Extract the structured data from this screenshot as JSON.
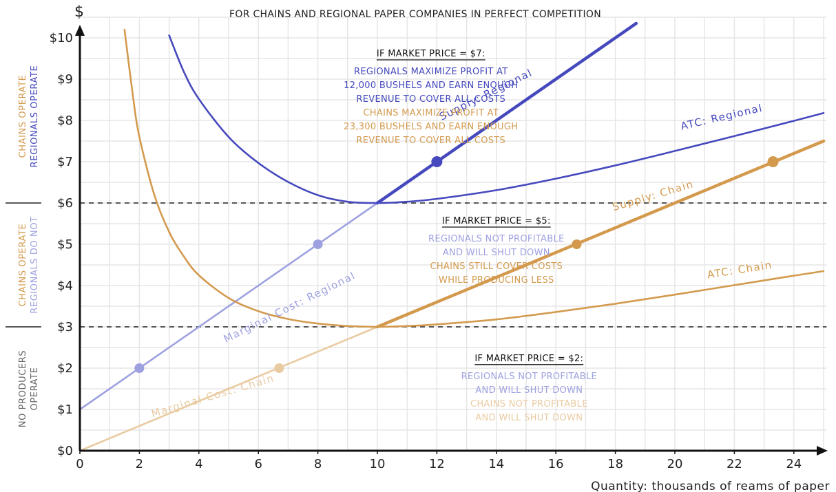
{
  "colors": {
    "regional": "#4549bd",
    "regional_light": "#9ea1e0",
    "chain": "#d39a4e",
    "chain_light": "#e9cba2",
    "grey": "#666666",
    "axis": "#111111"
  },
  "chart_data": {
    "type": "line",
    "title": "FOR CHAINS AND REGIONAL PAPER COMPANIES IN PERFECT COMPETITION",
    "xlabel": "Quantity: thousands of reams of paper",
    "ylabel": "$",
    "xlim": [
      0,
      25
    ],
    "ylim": [
      0,
      10
    ],
    "grid": true,
    "x_ticks": [
      "0",
      "2",
      "4",
      "6",
      "8",
      "10",
      "12",
      "14",
      "16",
      "18",
      "20",
      "22",
      "24"
    ],
    "y_ticks": [
      "$0",
      "$1",
      "$2",
      "$3",
      "$4",
      "$5",
      "$6",
      "$7",
      "$8",
      "$9",
      "$10"
    ],
    "price_lines": [
      3,
      6
    ],
    "series": [
      {
        "name": "Marginal Cost: Regional",
        "color_key": "regional_light",
        "x": [
          0,
          10
        ],
        "y": [
          1,
          6
        ]
      },
      {
        "name": "Supply: Regional",
        "color_key": "regional",
        "x": [
          10,
          18.7
        ],
        "y": [
          6,
          10.35
        ]
      },
      {
        "name": "ATC: Regional",
        "color_key": "regional",
        "x": [
          3,
          3.5,
          4,
          5,
          6,
          7,
          8,
          9,
          10,
          11,
          12,
          14,
          16,
          18,
          20,
          22,
          24,
          25
        ],
        "y": [
          10.06,
          9.17,
          8.52,
          7.6,
          6.97,
          6.51,
          6.19,
          6.03,
          6.0,
          6.03,
          6.1,
          6.31,
          6.59,
          6.91,
          7.26,
          7.62,
          7.99,
          8.18
        ]
      },
      {
        "name": "Marginal Cost: Chain",
        "color_key": "chain_light",
        "x": [
          0,
          10
        ],
        "y": [
          0,
          3
        ]
      },
      {
        "name": "Supply: Chain",
        "color_key": "chain",
        "x": [
          10,
          25
        ],
        "y": [
          3,
          7.5
        ]
      },
      {
        "name": "ATC: Chain",
        "color_key": "chain",
        "x": [
          1.5,
          1.8,
          2,
          2.5,
          3,
          3.5,
          4,
          5,
          6,
          7,
          8,
          9,
          10,
          11,
          12,
          14,
          16,
          18,
          20,
          22,
          24,
          25
        ],
        "y": [
          10.2,
          8.5,
          7.6,
          6.2,
          5.3,
          4.7,
          4.25,
          3.7,
          3.38,
          3.19,
          3.08,
          3.02,
          3.0,
          3.02,
          3.06,
          3.18,
          3.36,
          3.56,
          3.78,
          4.01,
          4.24,
          4.35
        ]
      }
    ],
    "points": [
      {
        "x": 12,
        "y": 7,
        "color_key": "regional",
        "size": "large"
      },
      {
        "x": 23.3,
        "y": 7,
        "color_key": "chain",
        "size": "large"
      },
      {
        "x": 8,
        "y": 5,
        "color_key": "regional_light",
        "size": "small"
      },
      {
        "x": 16.7,
        "y": 5,
        "color_key": "chain",
        "size": "small"
      },
      {
        "x": 2,
        "y": 2,
        "color_key": "regional_light",
        "size": "small"
      },
      {
        "x": 6.7,
        "y": 2,
        "color_key": "chain_light",
        "size": "small"
      }
    ],
    "curve_labels": [
      {
        "text": "Supply: Regional",
        "x": 13.7,
        "y": 8.55,
        "angle": 26.5,
        "color_key": "regional"
      },
      {
        "text": "ATC: Regional",
        "x": 21.6,
        "y": 8.0,
        "angle": 13,
        "color_key": "regional"
      },
      {
        "text": "Marginal Cost: Regional",
        "x": 7.1,
        "y": 3.4,
        "angle": 26.5,
        "color_key": "regional_light"
      },
      {
        "text": "Supply: Chain",
        "x": 19.3,
        "y": 6.1,
        "angle": 16.5,
        "color_key": "chain"
      },
      {
        "text": "ATC: Chain",
        "x": 22.2,
        "y": 4.3,
        "angle": 9,
        "color_key": "chain"
      },
      {
        "text": "Marginal Cost: Chain",
        "x": 4.5,
        "y": 1.25,
        "angle": 16.5,
        "color_key": "chain_light"
      }
    ],
    "annotations": [
      {
        "x": 11.8,
        "y": 9.55,
        "heading": "IF MARKET PRICE = $7:",
        "lines": [
          {
            "text": "REGIONALS MAXIMIZE PROFIT AT",
            "color_key": "regional"
          },
          {
            "text": "12,000 BUSHELS AND EARN ENOUGH",
            "color_key": "regional"
          },
          {
            "text": "REVENUE TO COVER ALL COSTS",
            "color_key": "regional"
          },
          {
            "text": "CHAINS MAXIMIZE PROFIT AT",
            "color_key": "chain"
          },
          {
            "text": "23,300 BUSHELS AND EARN ENOUGH",
            "color_key": "chain"
          },
          {
            "text": "REVENUE TO COVER ALL COSTS",
            "color_key": "chain"
          }
        ]
      },
      {
        "x": 14.0,
        "y": 5.5,
        "heading": "IF MARKET PRICE = $5:",
        "lines": [
          {
            "text": "REGIONALS NOT PROFITABLE",
            "color_key": "regional_light"
          },
          {
            "text": "AND WILL SHUT DOWN",
            "color_key": "regional_light"
          },
          {
            "text": "CHAINS STILL COVER COSTS",
            "color_key": "chain"
          },
          {
            "text": "WHILE PRODUCING LESS",
            "color_key": "chain"
          }
        ]
      },
      {
        "x": 15.1,
        "y": 2.17,
        "heading": "IF MARKET PRICE = $2:",
        "lines": [
          {
            "text": "REGIONALS NOT PROFITABLE",
            "color_key": "regional_light"
          },
          {
            "text": "AND WILL SHUT DOWN",
            "color_key": "regional_light"
          },
          {
            "text": "CHAINS NOT PROFITABLE",
            "color_key": "chain_light"
          },
          {
            "text": "AND WILL SHUT DOWN",
            "color_key": "chain_light"
          }
        ]
      }
    ],
    "side_labels": [
      {
        "lines": [
          {
            "text": "CHAINS OPERATE",
            "color_key": "chain"
          },
          {
            "text": "REGIONALS OPERATE",
            "color_key": "regional"
          }
        ],
        "y_center": 8.1
      },
      {
        "lines": [
          {
            "text": "CHAINS OPERATE",
            "color_key": "chain"
          },
          {
            "text": "REGIONALS DO NOT",
            "color_key": "regional_light"
          }
        ],
        "y_center": 4.5
      },
      {
        "lines": [
          {
            "text": "NO PRODUCERS",
            "color_key": "grey"
          },
          {
            "text": "OPERATE",
            "color_key": "grey"
          }
        ],
        "y_center": 1.5
      }
    ]
  }
}
